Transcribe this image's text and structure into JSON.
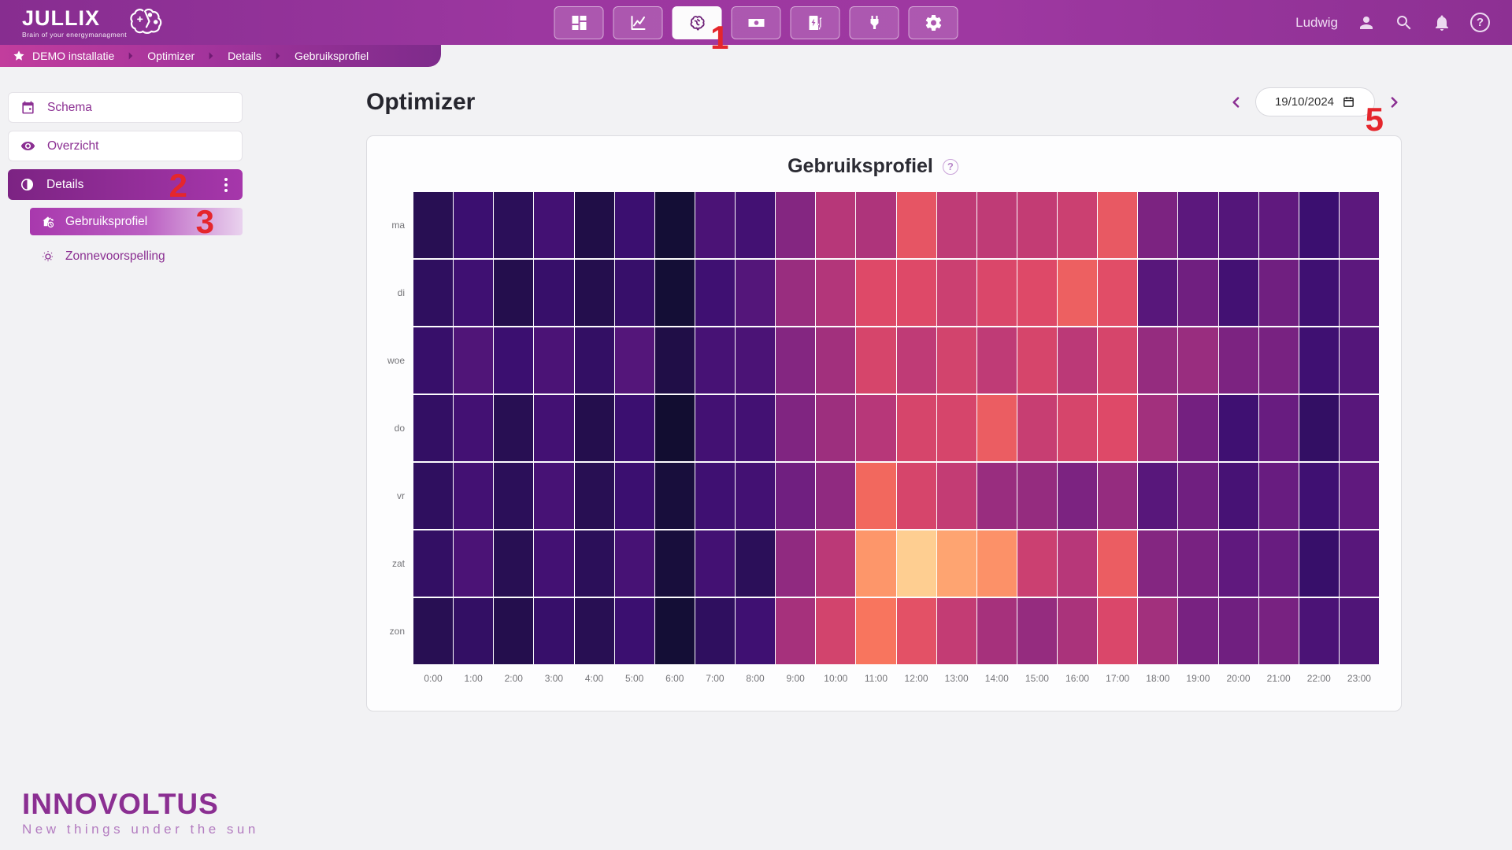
{
  "header": {
    "logo_title": "JULLIX",
    "logo_tagline": "Brain of your energymanagment",
    "user_name": "Ludwig",
    "nav_items": [
      {
        "icon": "dashboard-grid-icon"
      },
      {
        "icon": "line-chart-icon"
      },
      {
        "icon": "brain-icon",
        "active": true
      },
      {
        "icon": "banknote-icon"
      },
      {
        "icon": "charging-station-icon"
      },
      {
        "icon": "plug-icon"
      },
      {
        "icon": "gear-icon"
      }
    ],
    "right_icons": [
      "user-icon",
      "search-icon",
      "bell-icon",
      "help-icon"
    ]
  },
  "icons": {
    "question_mark": "?"
  },
  "breadcrumb": {
    "items": [
      "DEMO installatie",
      "Optimizer",
      "Details",
      "Gebruiksprofiel"
    ]
  },
  "sidebar": {
    "items": [
      {
        "label": "Schema",
        "icon": "calendar-icon"
      },
      {
        "label": "Overzicht",
        "icon": "eye-icon"
      },
      {
        "label": "Details",
        "icon": "contrast-icon",
        "active": true
      },
      {
        "label": "Gebruiksprofiel",
        "icon": "house-clock-icon",
        "active": true
      },
      {
        "label": "Zonnevoorspelling",
        "icon": "sun-icon"
      }
    ]
  },
  "page": {
    "title": "Optimizer"
  },
  "date_nav": {
    "value": "19/10/2024"
  },
  "annotations": {
    "step1": "1",
    "step2": "2",
    "step3": "3",
    "step5": "5"
  },
  "footer": {
    "brand": "INNOVOLTUS",
    "tagline": "New things under the sun"
  },
  "colors": {
    "accent_purple": "#8b2f92",
    "header_gradient_start": "#872d90",
    "header_gradient_end": "#9e38a1",
    "annotation_red": "#e5262c",
    "page_background": "#f2f2f4",
    "card_background": "#fdfdfe"
  },
  "chart_data": {
    "type": "heatmap",
    "title": "Gebruiksprofiel",
    "colormap": "magma",
    "value_scale": "relative intensity 0-1",
    "x_labels": [
      "0:00",
      "1:00",
      "2:00",
      "3:00",
      "4:00",
      "5:00",
      "6:00",
      "7:00",
      "8:00",
      "9:00",
      "10:00",
      "11:00",
      "12:00",
      "13:00",
      "14:00",
      "15:00",
      "16:00",
      "17:00",
      "18:00",
      "19:00",
      "20:00",
      "21:00",
      "22:00",
      "23:00"
    ],
    "y_labels": [
      "ma",
      "di",
      "woe",
      "do",
      "vr",
      "zat",
      "zon"
    ],
    "values": [
      [
        0.15,
        0.2,
        0.16,
        0.22,
        0.13,
        0.2,
        0.1,
        0.24,
        0.22,
        0.38,
        0.5,
        0.48,
        0.63,
        0.52,
        0.52,
        0.53,
        0.55,
        0.64,
        0.36,
        0.28,
        0.26,
        0.29,
        0.2,
        0.28
      ],
      [
        0.17,
        0.21,
        0.14,
        0.19,
        0.14,
        0.19,
        0.1,
        0.21,
        0.26,
        0.43,
        0.49,
        0.6,
        0.6,
        0.55,
        0.59,
        0.6,
        0.66,
        0.61,
        0.27,
        0.33,
        0.22,
        0.33,
        0.21,
        0.28
      ],
      [
        0.19,
        0.25,
        0.2,
        0.24,
        0.18,
        0.26,
        0.13,
        0.23,
        0.24,
        0.38,
        0.45,
        0.58,
        0.52,
        0.57,
        0.52,
        0.58,
        0.51,
        0.58,
        0.42,
        0.43,
        0.36,
        0.35,
        0.21,
        0.26
      ],
      [
        0.18,
        0.22,
        0.15,
        0.22,
        0.14,
        0.2,
        0.09,
        0.22,
        0.22,
        0.37,
        0.44,
        0.5,
        0.58,
        0.58,
        0.65,
        0.54,
        0.58,
        0.6,
        0.45,
        0.34,
        0.21,
        0.31,
        0.18,
        0.27
      ],
      [
        0.17,
        0.22,
        0.16,
        0.23,
        0.15,
        0.2,
        0.11,
        0.21,
        0.22,
        0.33,
        0.41,
        0.68,
        0.58,
        0.53,
        0.43,
        0.42,
        0.36,
        0.42,
        0.27,
        0.33,
        0.23,
        0.31,
        0.21,
        0.29
      ],
      [
        0.18,
        0.24,
        0.15,
        0.22,
        0.16,
        0.23,
        0.11,
        0.22,
        0.16,
        0.41,
        0.51,
        0.78,
        0.9,
        0.81,
        0.77,
        0.55,
        0.5,
        0.65,
        0.38,
        0.35,
        0.29,
        0.31,
        0.19,
        0.27
      ],
      [
        0.15,
        0.18,
        0.14,
        0.19,
        0.15,
        0.2,
        0.1,
        0.17,
        0.21,
        0.46,
        0.57,
        0.71,
        0.62,
        0.53,
        0.46,
        0.42,
        0.47,
        0.59,
        0.45,
        0.35,
        0.33,
        0.35,
        0.24,
        0.25
      ]
    ]
  }
}
